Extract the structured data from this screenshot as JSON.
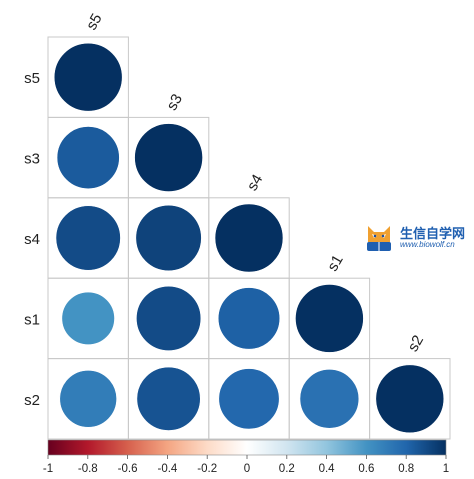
{
  "chart_data": {
    "type": "correlation-matrix",
    "method": "circle",
    "shape": "lower-triangle",
    "variables": [
      "s5",
      "s3",
      "s4",
      "s1",
      "s2"
    ],
    "matrix": [
      [
        1.0,
        0.84,
        0.9,
        0.6,
        0.7
      ],
      [
        0.84,
        1.0,
        0.93,
        0.9,
        0.87
      ],
      [
        0.9,
        0.93,
        1.0,
        0.82,
        0.79
      ],
      [
        0.6,
        0.9,
        0.82,
        1.0,
        0.75
      ],
      [
        0.7,
        0.87,
        0.79,
        0.75,
        1.0
      ]
    ],
    "colorbar": {
      "range": [
        -1,
        1
      ],
      "ticks": [
        "-1",
        "-0.8",
        "-0.6",
        "-0.4",
        "-0.2",
        "0",
        "0.2",
        "0.4",
        "0.6",
        "0.8",
        "1"
      ],
      "colors": [
        "#67001f",
        "#b2182b",
        "#d6604d",
        "#f4a582",
        "#fddbc7",
        "#ffffff",
        "#d1e5f0",
        "#92c5de",
        "#4393c3",
        "#2166ac",
        "#053061"
      ]
    }
  },
  "logo": {
    "title": "生信自学网",
    "url": "www.biowolf.cn"
  }
}
